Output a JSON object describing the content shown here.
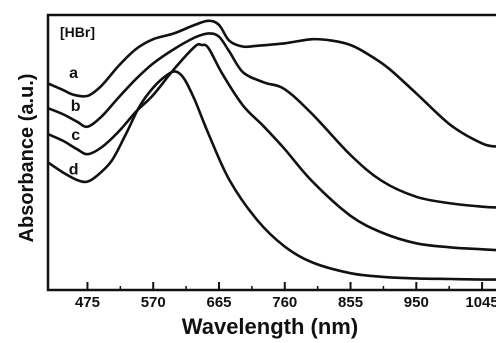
{
  "chart_data": {
    "type": "line",
    "xlabel": "Wavelength (nm)",
    "ylabel": "Absorbance (a.u.)",
    "x_ticks": [
      475,
      570,
      665,
      760,
      855,
      950,
      1045
    ],
    "xlim": [
      418,
      1068
    ],
    "ylim": [
      0,
      1
    ],
    "y_tick_labels_shown": false,
    "annotation": "[HBr]",
    "series": [
      {
        "name": "a",
        "label": "a",
        "label_position": [
          455,
          0.787
        ],
        "x": [
          418,
          440,
          455,
          475,
          495,
          520,
          545,
          570,
          600,
          630,
          650,
          665,
          680,
          700,
          720,
          760,
          800,
          830,
          855,
          880,
          910,
          950,
          1000,
          1045,
          1068
        ],
        "y": [
          0.751,
          0.727,
          0.71,
          0.706,
          0.742,
          0.815,
          0.876,
          0.912,
          0.933,
          0.964,
          0.979,
          0.964,
          0.906,
          0.885,
          0.888,
          0.897,
          0.912,
          0.906,
          0.891,
          0.858,
          0.806,
          0.715,
          0.599,
          0.533,
          0.521
        ]
      },
      {
        "name": "b",
        "label": "b",
        "label_position": [
          458,
          0.667
        ],
        "x": [
          418,
          440,
          460,
          475,
          495,
          520,
          545,
          570,
          600,
          630,
          650,
          665,
          680,
          700,
          730,
          760,
          800,
          855,
          900,
          950,
          1000,
          1045,
          1068
        ],
        "y": [
          0.661,
          0.639,
          0.612,
          0.594,
          0.63,
          0.7,
          0.767,
          0.824,
          0.876,
          0.918,
          0.933,
          0.921,
          0.867,
          0.791,
          0.755,
          0.73,
          0.639,
          0.491,
          0.397,
          0.339,
          0.315,
          0.303,
          0.3
        ]
      },
      {
        "name": "c",
        "label": "c",
        "label_position": [
          458,
          0.561
        ],
        "x": [
          418,
          440,
          460,
          475,
          495,
          520,
          545,
          570,
          600,
          630,
          640,
          650,
          670,
          700,
          730,
          760,
          800,
          855,
          900,
          950,
          1000,
          1045,
          1068
        ],
        "y": [
          0.567,
          0.542,
          0.512,
          0.494,
          0.518,
          0.576,
          0.648,
          0.709,
          0.803,
          0.885,
          0.891,
          0.879,
          0.785,
          0.67,
          0.594,
          0.512,
          0.394,
          0.27,
          0.209,
          0.17,
          0.155,
          0.148,
          0.145
        ]
      },
      {
        "name": "d",
        "label": "d",
        "label_position": [
          455,
          0.436
        ],
        "x": [
          418,
          440,
          460,
          475,
          490,
          510,
          530,
          550,
          570,
          590,
          603,
          615,
          630,
          650,
          680,
          720,
          760,
          800,
          855,
          900,
          950,
          1000,
          1045,
          1068
        ],
        "y": [
          0.464,
          0.427,
          0.4,
          0.394,
          0.418,
          0.47,
          0.564,
          0.667,
          0.736,
          0.782,
          0.794,
          0.767,
          0.691,
          0.567,
          0.4,
          0.255,
          0.158,
          0.1,
          0.061,
          0.048,
          0.042,
          0.04,
          0.038,
          0.038
        ]
      }
    ]
  }
}
